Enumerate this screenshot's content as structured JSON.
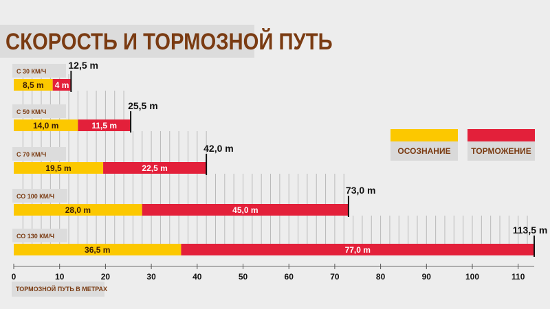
{
  "title": "СКОРОСТЬ И ТОРМОЗНОЙ ПУТЬ",
  "axis_caption": "ТОРМОЗНОЙ ПУТЬ В МЕТРАХ",
  "legend": [
    {
      "label": "ОСОЗНАНИЕ",
      "color": "#fcc800"
    },
    {
      "label": "ТОРМОЖЕНИЕ",
      "color": "#e3203a"
    }
  ],
  "colors": {
    "reaction": "#fcc800",
    "braking": "#e3203a",
    "label_brown": "#7a3b12",
    "grid": "#b9b9b9"
  },
  "chart_data": {
    "type": "bar",
    "orientation": "horizontal",
    "stacked": true,
    "title": "СКОРОСТЬ И ТОРМОЗНОЙ ПУТЬ",
    "xlabel": "ТОРМОЗНОЙ ПУТЬ В МЕТРАХ",
    "xlim": [
      0,
      113.5
    ],
    "xticks": [
      0,
      10,
      20,
      30,
      40,
      50,
      60,
      70,
      80,
      90,
      100,
      110
    ],
    "grid": true,
    "legend_position": "right",
    "categories": [
      "С 30 КМ/Ч",
      "С 50 КМ/Ч",
      "С 70 КМ/Ч",
      "СО 100 КМ/Ч",
      "СО 130 КМ/Ч"
    ],
    "series": [
      {
        "name": "ОСОЗНАНИЕ",
        "values": [
          8.5,
          14.0,
          19.5,
          28.0,
          36.5
        ],
        "labels": [
          "8,5 m",
          "14,0 m",
          "19,5 m",
          "28,0 m",
          "36,5 m"
        ]
      },
      {
        "name": "ТОРМОЖЕНИЕ",
        "values": [
          4.0,
          11.5,
          22.5,
          45.0,
          77.0
        ],
        "labels": [
          "4 m",
          "11,5 m",
          "22,5 m",
          "45,0 m",
          "77,0 m"
        ]
      }
    ],
    "totals": [
      12.5,
      25.5,
      42.0,
      73.0,
      113.5
    ],
    "total_labels": [
      "12,5 m",
      "25,5 m",
      "42,0 m",
      "73,0 m",
      "113,5 m"
    ]
  }
}
